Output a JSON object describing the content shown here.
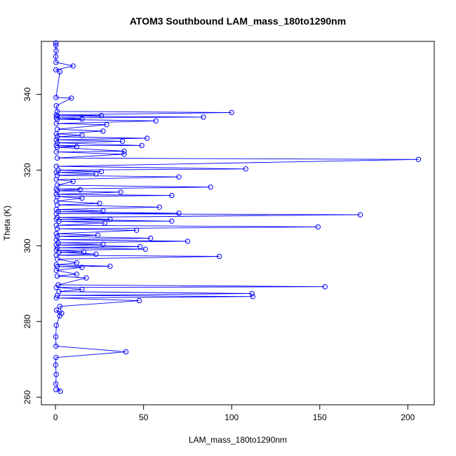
{
  "chart_data": {
    "type": "line",
    "title": "ATOM3 Southbound LAM_mass_180to1290nm",
    "xlabel": "LAM_mass_180to1290nm",
    "ylabel": "Theta (K)",
    "xlim": [
      -8,
      215
    ],
    "ylim": [
      258,
      354
    ],
    "xticks": [
      0,
      50,
      100,
      150,
      200
    ],
    "yticks": [
      260,
      280,
      300,
      320,
      340
    ],
    "line_color": "#0000ff",
    "marker": "open-circle",
    "grid": false,
    "legend": "none",
    "series": [
      {
        "points": [
          {
            "x": 0.3,
            "y": 262
          },
          {
            "x": 2.8,
            "y": 261.6
          },
          {
            "x": 0.2,
            "y": 263.5
          },
          {
            "x": 0.4,
            "y": 266
          },
          {
            "x": 0.1,
            "y": 268.5
          },
          {
            "x": 0.3,
            "y": 270.5
          },
          {
            "x": 40,
            "y": 272
          },
          {
            "x": 0.3,
            "y": 273.5
          },
          {
            "x": 0.2,
            "y": 276
          },
          {
            "x": 0.5,
            "y": 279
          },
          {
            "x": 2.4,
            "y": 281.5
          },
          {
            "x": 0.6,
            "y": 283
          },
          {
            "x": 3.5,
            "y": 282.2
          },
          {
            "x": 2.5,
            "y": 284
          },
          {
            "x": 47.5,
            "y": 285.5
          },
          {
            "x": 0.5,
            "y": 286.2
          },
          {
            "x": 112,
            "y": 286.6
          },
          {
            "x": 1,
            "y": 286.9
          },
          {
            "x": 111.5,
            "y": 287.4
          },
          {
            "x": 2,
            "y": 287.9
          },
          {
            "x": 15,
            "y": 288.5
          },
          {
            "x": 0.5,
            "y": 289
          },
          {
            "x": 153,
            "y": 289.2
          },
          {
            "x": 1.5,
            "y": 289.7
          },
          {
            "x": 17.5,
            "y": 291.5
          },
          {
            "x": 1,
            "y": 292
          },
          {
            "x": 12,
            "y": 292.5
          },
          {
            "x": 0.5,
            "y": 293.5
          },
          {
            "x": 15,
            "y": 294.3
          },
          {
            "x": 1,
            "y": 294.5
          },
          {
            "x": 31,
            "y": 294.6
          },
          {
            "x": 0.5,
            "y": 295
          },
          {
            "x": 12,
            "y": 295.5
          },
          {
            "x": 1,
            "y": 296.5
          },
          {
            "x": 93,
            "y": 297.2
          },
          {
            "x": 0.5,
            "y": 297.5
          },
          {
            "x": 23,
            "y": 297.8
          },
          {
            "x": 2,
            "y": 298.3
          },
          {
            "x": 16,
            "y": 298.4
          },
          {
            "x": 0.5,
            "y": 298.8
          },
          {
            "x": 51,
            "y": 299.1
          },
          {
            "x": 1,
            "y": 299.5
          },
          {
            "x": 48,
            "y": 299.8
          },
          {
            "x": 0.5,
            "y": 300.2
          },
          {
            "x": 27,
            "y": 300.4
          },
          {
            "x": 1.5,
            "y": 300.8
          },
          {
            "x": 75,
            "y": 301.2
          },
          {
            "x": 0.5,
            "y": 301.6
          },
          {
            "x": 54,
            "y": 302
          },
          {
            "x": 1,
            "y": 302.5
          },
          {
            "x": 24,
            "y": 302.8
          },
          {
            "x": 0.5,
            "y": 303.2
          },
          {
            "x": 46,
            "y": 304.1
          },
          {
            "x": 1,
            "y": 304.5
          },
          {
            "x": 149,
            "y": 305
          },
          {
            "x": 0.5,
            "y": 305.4
          },
          {
            "x": 28,
            "y": 306
          },
          {
            "x": 2,
            "y": 306.5
          },
          {
            "x": 66,
            "y": 306.5
          },
          {
            "x": 0.5,
            "y": 307
          },
          {
            "x": 31,
            "y": 307
          },
          {
            "x": 1,
            "y": 307.5
          },
          {
            "x": 173,
            "y": 308.2
          },
          {
            "x": 0.5,
            "y": 308.5
          },
          {
            "x": 70,
            "y": 308.6
          },
          {
            "x": 1.5,
            "y": 309
          },
          {
            "x": 27,
            "y": 309.2
          },
          {
            "x": 0.5,
            "y": 309.6
          },
          {
            "x": 59,
            "y": 310.2
          },
          {
            "x": 1,
            "y": 310.8
          },
          {
            "x": 25,
            "y": 311.2
          },
          {
            "x": 0.5,
            "y": 311.8
          },
          {
            "x": 15,
            "y": 312.6
          },
          {
            "x": 1,
            "y": 313
          },
          {
            "x": 66,
            "y": 313.3
          },
          {
            "x": 0.5,
            "y": 313.6
          },
          {
            "x": 37,
            "y": 314.2
          },
          {
            "x": 1,
            "y": 314.5
          },
          {
            "x": 14,
            "y": 314.8
          },
          {
            "x": 0.5,
            "y": 315
          },
          {
            "x": 88,
            "y": 315.5
          },
          {
            "x": 1,
            "y": 316
          },
          {
            "x": 10,
            "y": 317
          },
          {
            "x": 0.5,
            "y": 317.5
          },
          {
            "x": 70,
            "y": 318.2
          },
          {
            "x": 1,
            "y": 318.6
          },
          {
            "x": 23,
            "y": 319
          },
          {
            "x": 0.5,
            "y": 319.4
          },
          {
            "x": 26,
            "y": 319.6
          },
          {
            "x": 1.5,
            "y": 320
          },
          {
            "x": 108,
            "y": 320.3
          },
          {
            "x": 0.5,
            "y": 321
          },
          {
            "x": 206,
            "y": 322.8
          },
          {
            "x": 1,
            "y": 323.2
          },
          {
            "x": 39,
            "y": 324.2
          },
          {
            "x": 0.5,
            "y": 324.8
          },
          {
            "x": 39,
            "y": 325
          },
          {
            "x": 1,
            "y": 326
          },
          {
            "x": 12,
            "y": 326.2
          },
          {
            "x": 0.5,
            "y": 326.5
          },
          {
            "x": 49,
            "y": 326.5
          },
          {
            "x": 1,
            "y": 327.2
          },
          {
            "x": 38,
            "y": 327.6
          },
          {
            "x": 0.5,
            "y": 328
          },
          {
            "x": 52,
            "y": 328.4
          },
          {
            "x": 1,
            "y": 328.8
          },
          {
            "x": 15,
            "y": 329.2
          },
          {
            "x": 0.5,
            "y": 329.6
          },
          {
            "x": 27,
            "y": 330.3
          },
          {
            "x": 1,
            "y": 330.8
          },
          {
            "x": 29,
            "y": 332
          },
          {
            "x": 0.5,
            "y": 332.3
          },
          {
            "x": 57,
            "y": 333
          },
          {
            "x": 1,
            "y": 333.4
          },
          {
            "x": 15,
            "y": 333.5
          },
          {
            "x": 0.5,
            "y": 333.8
          },
          {
            "x": 84,
            "y": 334
          },
          {
            "x": 1,
            "y": 334.3
          },
          {
            "x": 26,
            "y": 334.4
          },
          {
            "x": 0.5,
            "y": 334.6
          },
          {
            "x": 100,
            "y": 335.2
          },
          {
            "x": 1,
            "y": 335.5
          },
          {
            "x": 0.5,
            "y": 337
          },
          {
            "x": 9,
            "y": 339
          },
          {
            "x": 0.3,
            "y": 339.2
          },
          {
            "x": 2.5,
            "y": 346
          },
          {
            "x": 0.2,
            "y": 346.5
          },
          {
            "x": 10,
            "y": 347.5
          },
          {
            "x": 0.3,
            "y": 348.5
          },
          {
            "x": 0.2,
            "y": 350
          },
          {
            "x": 0.4,
            "y": 351.5
          },
          {
            "x": 0.2,
            "y": 353
          },
          {
            "x": 0.3,
            "y": 353.6
          }
        ]
      }
    ]
  }
}
